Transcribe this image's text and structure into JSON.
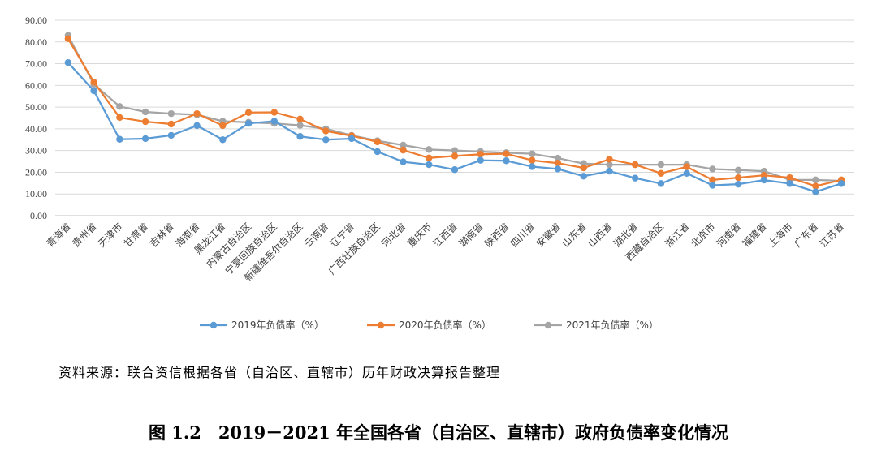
{
  "chart_data": {
    "type": "line",
    "categories": [
      "青海省",
      "贵州省",
      "天津市",
      "甘肃省",
      "吉林省",
      "海南省",
      "黑龙江省",
      "内蒙古自治区",
      "宁夏回族自治区",
      "新疆维吾尔自治区",
      "云南省",
      "辽宁省",
      "广西壮族自治区",
      "河北省",
      "重庆市",
      "江西省",
      "湖南省",
      "陕西省",
      "四川省",
      "安徽省",
      "山东省",
      "山西省",
      "湖北省",
      "西藏自治区",
      "浙江省",
      "北京市",
      "河南省",
      "福建省",
      "上海市",
      "广东省",
      "江苏省"
    ],
    "series": [
      {
        "name": "2019年负债率（%）",
        "color": "#5B9BD5",
        "values": [
          70.5,
          57.5,
          35.2,
          35.5,
          37.0,
          41.5,
          35.0,
          42.5,
          43.5,
          36.5,
          35.0,
          35.5,
          29.5,
          24.8,
          23.5,
          21.2,
          25.5,
          25.3,
          22.6,
          21.5,
          18.2,
          20.5,
          17.3,
          14.8,
          19.5,
          14.0,
          14.5,
          16.4,
          14.8,
          11.0,
          14.8
        ]
      },
      {
        "name": "2020年负债率（%）",
        "color": "#ED7D31",
        "values": [
          81.5,
          61.5,
          45.2,
          43.3,
          42.2,
          47.0,
          41.5,
          47.5,
          47.6,
          44.5,
          39.0,
          36.8,
          34.0,
          30.2,
          26.6,
          27.5,
          28.3,
          28.5,
          25.5,
          24.2,
          22.0,
          26.0,
          23.5,
          19.5,
          22.5,
          16.5,
          17.5,
          18.6,
          17.5,
          13.6,
          16.5
        ]
      },
      {
        "name": "2021年负债率（%）",
        "color": "#A5A5A5",
        "values": [
          83.0,
          60.5,
          50.3,
          47.8,
          47.0,
          46.5,
          43.5,
          43.0,
          42.5,
          41.6,
          40.0,
          37.0,
          34.5,
          32.5,
          30.5,
          30.0,
          29.5,
          29.0,
          28.5,
          26.5,
          24.0,
          23.5,
          23.5,
          23.5,
          23.5,
          21.5,
          21.0,
          20.5,
          16.5,
          16.5,
          16.0
        ]
      }
    ],
    "yticks": [
      "0.00",
      "10.00",
      "20.00",
      "30.00",
      "40.00",
      "50.00",
      "60.00",
      "70.00",
      "80.00",
      "90.00"
    ],
    "ylim": [
      0,
      90
    ],
    "grid": true,
    "legend_position": "bottom"
  },
  "source_text": "资料来源：联合资信根据各省（自治区、直辖市）历年财政决算报告整理",
  "caption_text": "图 1.2　2019－2021 年全国各省（自治区、直辖市）政府负债率变化情况"
}
